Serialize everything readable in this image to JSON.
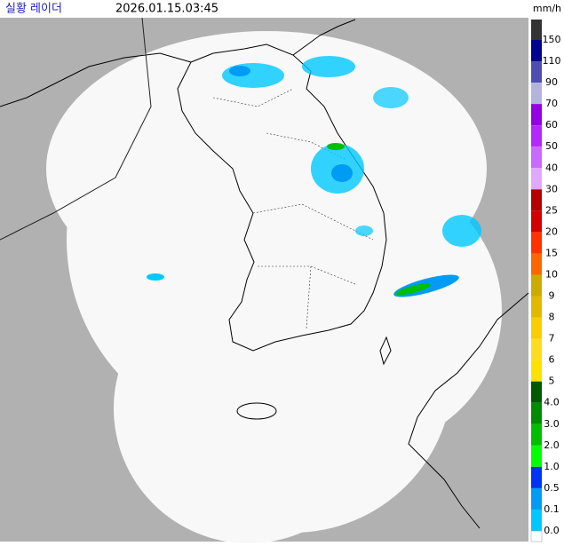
{
  "header": {
    "title": "실황 레이더",
    "timestamp": "2026.01.15.03:45"
  },
  "legend": {
    "unit": "mm/h",
    "top_color": "#333333",
    "levels": [
      {
        "label": "150",
        "color": "#000390"
      },
      {
        "label": "110",
        "color": "#4c4eb1"
      },
      {
        "label": "90",
        "color": "#b3b4de"
      },
      {
        "label": "70",
        "color": "#9300e4"
      },
      {
        "label": "60",
        "color": "#b329ff"
      },
      {
        "label": "50",
        "color": "#c969ff"
      },
      {
        "label": "40",
        "color": "#e0a9ff"
      },
      {
        "label": "30",
        "color": "#b40000"
      },
      {
        "label": "25",
        "color": "#d20000"
      },
      {
        "label": "20",
        "color": "#ff3200"
      },
      {
        "label": "15",
        "color": "#ff6600"
      },
      {
        "label": "10",
        "color": "#ccaa00"
      },
      {
        "label": "9",
        "color": "#e0b900"
      },
      {
        "label": "8",
        "color": "#f9cd00"
      },
      {
        "label": "7",
        "color": "#ffdc1f"
      },
      {
        "label": "6",
        "color": "#ffe100"
      },
      {
        "label": "5",
        "color": "#005a00"
      },
      {
        "label": "4.0",
        "color": "#008c00"
      },
      {
        "label": "3.0",
        "color": "#00be00"
      },
      {
        "label": "2.0",
        "color": "#00ff00"
      },
      {
        "label": "1.0",
        "color": "#0033f5"
      },
      {
        "label": "0.5",
        "color": "#009bf5"
      },
      {
        "label": "0.1",
        "color": "#00c8ff"
      },
      {
        "label": "0.0",
        "color": "#ffffff"
      }
    ]
  }
}
